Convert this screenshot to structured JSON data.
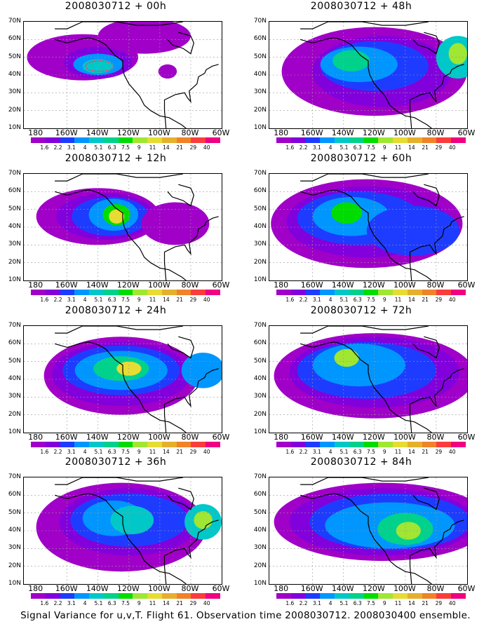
{
  "panels": [
    {
      "title": "2008030712 + 00h",
      "col": 0,
      "row": 0
    },
    {
      "title": "2008030712 + 48h",
      "col": 1,
      "row": 0
    },
    {
      "title": "2008030712 + 12h",
      "col": 0,
      "row": 1
    },
    {
      "title": "2008030712 + 60h",
      "col": 1,
      "row": 1
    },
    {
      "title": "2008030712 + 24h",
      "col": 0,
      "row": 2
    },
    {
      "title": "2008030712 + 72h",
      "col": 1,
      "row": 2
    },
    {
      "title": "2008030712 + 36h",
      "col": 0,
      "row": 3
    },
    {
      "title": "2008030712 + 84h",
      "col": 1,
      "row": 3
    }
  ],
  "lat_labels": [
    "70N",
    "60N",
    "50N",
    "40N",
    "30N",
    "20N",
    "10N"
  ],
  "lon_labels": [
    "180",
    "160W",
    "140W",
    "120W",
    "100W",
    "80W",
    "60W"
  ],
  "colorbar": {
    "labels": [
      "1.6",
      "2.2",
      "3.1",
      "4",
      "5.1",
      "6.3",
      "7.5",
      "9",
      "11",
      "14",
      "21",
      "29",
      "40"
    ],
    "colors": [
      "#a000c8",
      "#8200dc",
      "#1e3cff",
      "#0096ff",
      "#00c8c8",
      "#00d28c",
      "#00dc00",
      "#a0e632",
      "#e6dc32",
      "#e6af2d",
      "#f08228",
      "#fa3c3c",
      "#f00082"
    ]
  },
  "footer": "Signal Variance for u,v,T. Flight 61. Observation time 2008030712. 2008030400 ensemble."
}
